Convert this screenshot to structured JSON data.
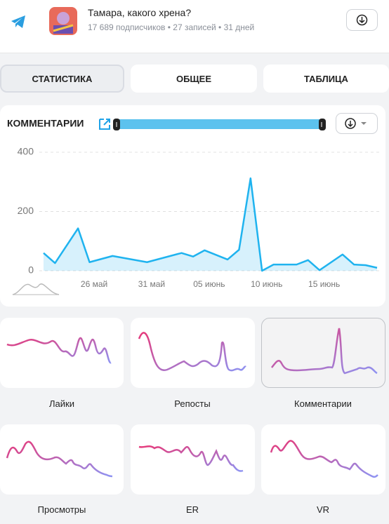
{
  "header": {
    "title": "Тамара, какого хрена?",
    "subtitle": "17 689 подписчиков • 27 записей • 31 дней"
  },
  "tabs": [
    "СТАТИСТИКА",
    "ОБЩЕЕ",
    "ТАБЛИЦА"
  ],
  "chart_data": {
    "type": "line",
    "title": "КОММЕНТАРИИ",
    "x": [
      0,
      1,
      3,
      4,
      6,
      9,
      12,
      13,
      14,
      16,
      17,
      18,
      19,
      20,
      21,
      22,
      23,
      24,
      26,
      27,
      28,
      29
    ],
    "values": [
      60,
      26,
      143,
      29,
      50,
      29,
      60,
      48,
      69,
      38,
      71,
      312,
      0,
      21,
      21,
      21,
      36,
      2,
      55,
      21,
      19,
      10
    ],
    "color": "#1fb3ef",
    "xlim": [
      0,
      29
    ],
    "ylim": [
      0,
      400
    ],
    "yticks": [
      0,
      200,
      400
    ],
    "xticks": [
      {
        "value": 4.4,
        "label": "26 май"
      },
      {
        "value": 9.4,
        "label": "31 май"
      },
      {
        "value": 14.4,
        "label": "05 июнь"
      },
      {
        "value": 19.4,
        "label": "10 июнь"
      },
      {
        "value": 24.4,
        "label": "15 июнь"
      }
    ],
    "grid": true
  },
  "cards": [
    "Лайки",
    "Репосты",
    "Комментарии",
    "Просмотры",
    "ER",
    "VR"
  ]
}
